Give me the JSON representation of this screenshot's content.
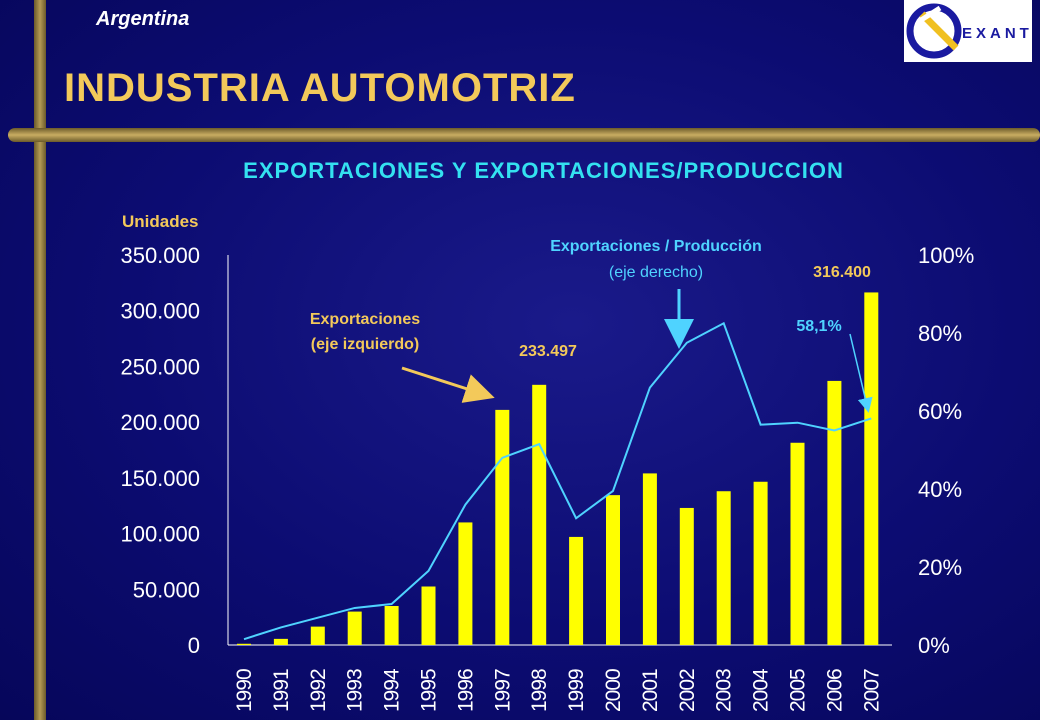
{
  "header": {
    "country": "Argentina",
    "title": "INDUSTRIA AUTOMOTRIZ",
    "subtitle": "EXPORTACIONES Y EXPORTACIONES/PRODUCCION",
    "logo_text": "EXANTE"
  },
  "colors": {
    "bar": "#ffff00",
    "line": "#4fd3ff",
    "axis_text": "#ffffff",
    "annotation_yellow": "#f3c95a",
    "annotation_blue": "#4fd3ff"
  },
  "chart_data": {
    "type": "bar",
    "left_axis_label": "Unidades",
    "left_ticks": [
      "350.000",
      "300.000",
      "250.000",
      "200.000",
      "150.000",
      "100.000",
      "50.000",
      "0"
    ],
    "right_ticks": [
      "100%",
      "80%",
      "60%",
      "40%",
      "20%",
      "0%"
    ],
    "ylim_left": [
      0,
      350000
    ],
    "ylim_right": [
      0,
      100
    ],
    "categories": [
      "1990",
      "1991",
      "1992",
      "1993",
      "1994",
      "1995",
      "1996",
      "1997",
      "1998",
      "1999",
      "2000",
      "2001",
      "2002",
      "2003",
      "2004",
      "2005",
      "2006",
      "2007"
    ],
    "series": [
      {
        "name": "Exportaciones",
        "axis": "left",
        "type": "bar",
        "values": [
          1100,
          5500,
          16500,
          30000,
          35000,
          52500,
          110000,
          211000,
          233497,
          97000,
          134500,
          154000,
          123000,
          138000,
          146500,
          181500,
          237000,
          316400
        ]
      },
      {
        "name": "Exportaciones / Producción",
        "axis": "right",
        "type": "line",
        "values": [
          1.5,
          4.5,
          7,
          9.5,
          10.5,
          19,
          36,
          48,
          51.5,
          32.5,
          39.5,
          66,
          77.5,
          82.5,
          56.5,
          57,
          55,
          58.1
        ]
      }
    ],
    "annotations": {
      "exports_label_1": "Exportaciones",
      "exports_label_2": "(eje izquierdo)",
      "ratio_label_1": "Exportaciones / Producción",
      "ratio_label_2": "(eje derecho)",
      "label_1998": "233.497",
      "label_2007": "316.400",
      "label_ratio_2007": "58,1%"
    }
  }
}
